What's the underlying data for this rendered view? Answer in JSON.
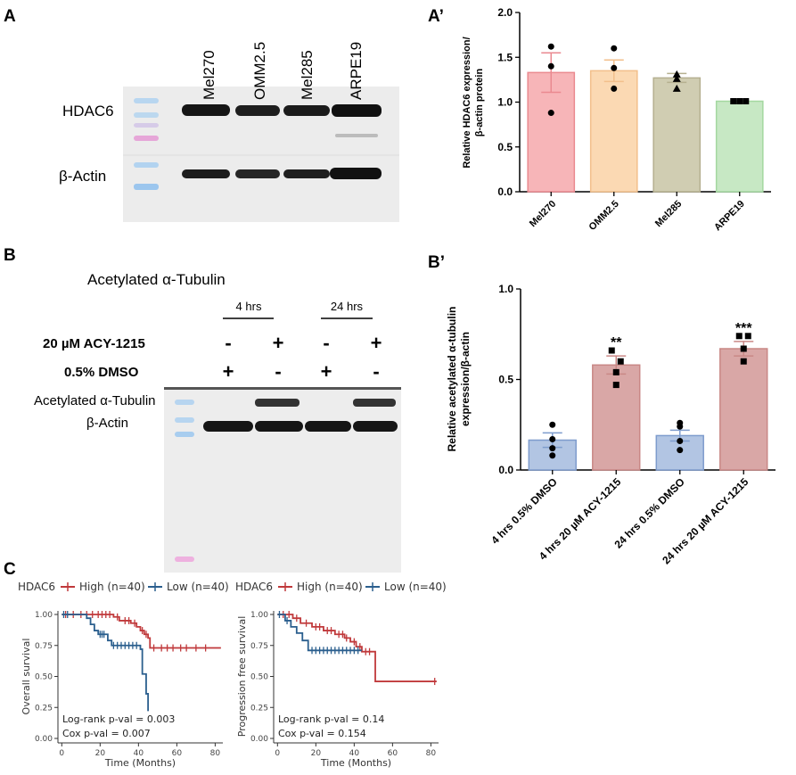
{
  "panel_labels": {
    "a": "A",
    "a_prime": "A’",
    "b": "B",
    "b_prime": "B’",
    "c": "C"
  },
  "panelA": {
    "lanes": [
      "Mel270",
      "OMM2.5",
      "Mel285",
      "ARPE19"
    ],
    "rows": [
      "HDAC6",
      "β-Actin"
    ]
  },
  "panelB": {
    "title": "Acetylated α-Tubulin",
    "time_groups": [
      "4 hrs",
      "24 hrs"
    ],
    "treatments": [
      {
        "label": "20 µM ACY-1215",
        "signs": [
          "-",
          "+",
          "-",
          "+"
        ]
      },
      {
        "label": "0.5% DMSO",
        "signs": [
          "+",
          "-",
          "+",
          "-"
        ]
      }
    ],
    "band_labels": [
      "Acetylated α-Tubulin",
      "β-Actin"
    ]
  },
  "chart_data": [
    {
      "id": "a_prime",
      "type": "bar",
      "categories": [
        "Mel270",
        "OMM2.5",
        "Mel285",
        "ARPE19"
      ],
      "values": [
        1.33,
        1.35,
        1.27,
        1.01
      ],
      "errors": [
        0.22,
        0.12,
        0.05,
        0.0
      ],
      "points": [
        [
          1.62,
          1.4,
          0.88
        ],
        [
          1.6,
          1.38,
          1.15
        ],
        [
          1.31,
          1.26,
          1.15
        ],
        [
          1.01,
          1.01,
          1.01
        ]
      ],
      "markers": [
        "circle",
        "circle",
        "triangle",
        "square"
      ],
      "colors": [
        "#f7b5b8",
        "#fbd9b3",
        "#d0cdb2",
        "#c7e8c4"
      ],
      "strokes": [
        "#ea8a90",
        "#f2bf8b",
        "#b5b090",
        "#a4d8a0"
      ],
      "ylabel": [
        "Relative HDAC6 expression/",
        "β-actin protein"
      ],
      "ylim": [
        0,
        2.0
      ],
      "yticks": [
        "0.0",
        "0.5",
        "1.0",
        "1.5",
        "2.0"
      ],
      "grid": false
    },
    {
      "id": "b_prime",
      "type": "bar",
      "categories": [
        "4 hrs 0.5% DMSO",
        "4 hrs 20 µM ACY-1215",
        "24 hrs 0.5% DMSO",
        "24 hrs 20 µM ACY-1215"
      ],
      "values": [
        0.165,
        0.58,
        0.19,
        0.67
      ],
      "errors": [
        0.04,
        0.05,
        0.03,
        0.04
      ],
      "points": [
        [
          0.25,
          0.17,
          0.08,
          0.12
        ],
        [
          0.66,
          0.6,
          0.54,
          0.47
        ],
        [
          0.26,
          0.24,
          0.16,
          0.11
        ],
        [
          0.74,
          0.74,
          0.67,
          0.6
        ]
      ],
      "markers": [
        "circle",
        "square",
        "circle",
        "square"
      ],
      "colors": [
        "#b2c5e3",
        "#d9a7a6",
        "#b2c5e3",
        "#d9a7a6"
      ],
      "strokes": [
        "#7e9ccd",
        "#c98886",
        "#7e9ccd",
        "#c98886"
      ],
      "significance": [
        "",
        "**",
        "",
        "***"
      ],
      "ylabel": [
        "Relative acetylated α-tubulin",
        "expression/β-actin"
      ],
      "ylim": [
        0,
        1.0
      ],
      "yticks": [
        "0.0",
        "0.5",
        "1.0"
      ],
      "grid": false
    },
    {
      "id": "c_overall",
      "type": "line",
      "legend_title": "HDAC6",
      "legend": [
        "High (n=40)",
        "Low (n=40)"
      ],
      "series_colors": [
        "#c0393b",
        "#2b5f8e"
      ],
      "series": [
        {
          "name": "High (n=40)",
          "steps": [
            [
              0,
              1.0
            ],
            [
              27,
              0.98
            ],
            [
              30,
              0.95
            ],
            [
              36,
              0.93
            ],
            [
              39,
              0.9
            ],
            [
              41,
              0.87
            ],
            [
              43,
              0.84
            ],
            [
              45,
              0.81
            ],
            [
              46,
              0.73
            ],
            [
              83,
              0.73
            ]
          ],
          "censor": [
            2,
            6,
            10,
            13,
            16,
            19,
            21,
            23,
            25,
            29,
            33,
            35,
            38,
            42,
            44,
            48,
            52,
            55,
            58,
            62,
            65,
            70,
            75
          ]
        },
        {
          "name": "Low (n=40)",
          "steps": [
            [
              0,
              1.0
            ],
            [
              13,
              0.97
            ],
            [
              15,
              0.92
            ],
            [
              17,
              0.87
            ],
            [
              19,
              0.84
            ],
            [
              24,
              0.79
            ],
            [
              26,
              0.75
            ],
            [
              41,
              0.72
            ],
            [
              42,
              0.52
            ],
            [
              44,
              0.36
            ],
            [
              45,
              0.22
            ]
          ],
          "censor": [
            1,
            3,
            20,
            21,
            22,
            27,
            29,
            31,
            33,
            35,
            37,
            39
          ]
        }
      ],
      "xlabel": "Time (Months)",
      "ylabel": "Overall survival",
      "xlim": [
        -2,
        84
      ],
      "ylim": [
        0,
        1.0
      ],
      "xticks": [
        "0",
        "20",
        "40",
        "60",
        "80"
      ],
      "yticks": [
        "0.00",
        "0.25",
        "0.50",
        "0.75",
        "1.00"
      ],
      "annotations": [
        "Log-rank p-val = 0.003",
        "Cox p-val = 0.007"
      ]
    },
    {
      "id": "c_pfs",
      "type": "line",
      "legend_title": "HDAC6",
      "legend": [
        "High (n=40)",
        "Low (n=40)"
      ],
      "series_colors": [
        "#c0393b",
        "#2b5f8e"
      ],
      "series": [
        {
          "name": "High (n=40)",
          "steps": [
            [
              0,
              1.0
            ],
            [
              8,
              0.97
            ],
            [
              12,
              0.93
            ],
            [
              18,
              0.9
            ],
            [
              24,
              0.87
            ],
            [
              30,
              0.84
            ],
            [
              35,
              0.81
            ],
            [
              38,
              0.78
            ],
            [
              41,
              0.74
            ],
            [
              44,
              0.7
            ],
            [
              51,
              0.46
            ],
            [
              83,
              0.46
            ]
          ],
          "censor": [
            3,
            6,
            10,
            15,
            20,
            22,
            26,
            28,
            32,
            34,
            36,
            40,
            43,
            46,
            48,
            82
          ]
        },
        {
          "name": "Low (n=40)",
          "steps": [
            [
              0,
              1.0
            ],
            [
              4,
              0.95
            ],
            [
              7,
              0.9
            ],
            [
              10,
              0.85
            ],
            [
              13,
              0.79
            ],
            [
              16,
              0.71
            ],
            [
              44,
              0.71
            ]
          ],
          "censor": [
            1,
            5,
            18,
            20,
            22,
            24,
            26,
            28,
            30,
            32,
            34,
            36,
            38,
            40,
            42
          ]
        }
      ],
      "xlabel": "Time (Months)",
      "ylabel": "Progression free survival",
      "xlim": [
        -2,
        84
      ],
      "ylim": [
        0,
        1.0
      ],
      "xticks": [
        "0",
        "20",
        "40",
        "60",
        "80"
      ],
      "yticks": [
        "0.00",
        "0.25",
        "0.50",
        "0.75",
        "1.00"
      ],
      "annotations": [
        "Log-rank p-val = 0.14",
        "Cox p-val = 0.154"
      ]
    }
  ]
}
